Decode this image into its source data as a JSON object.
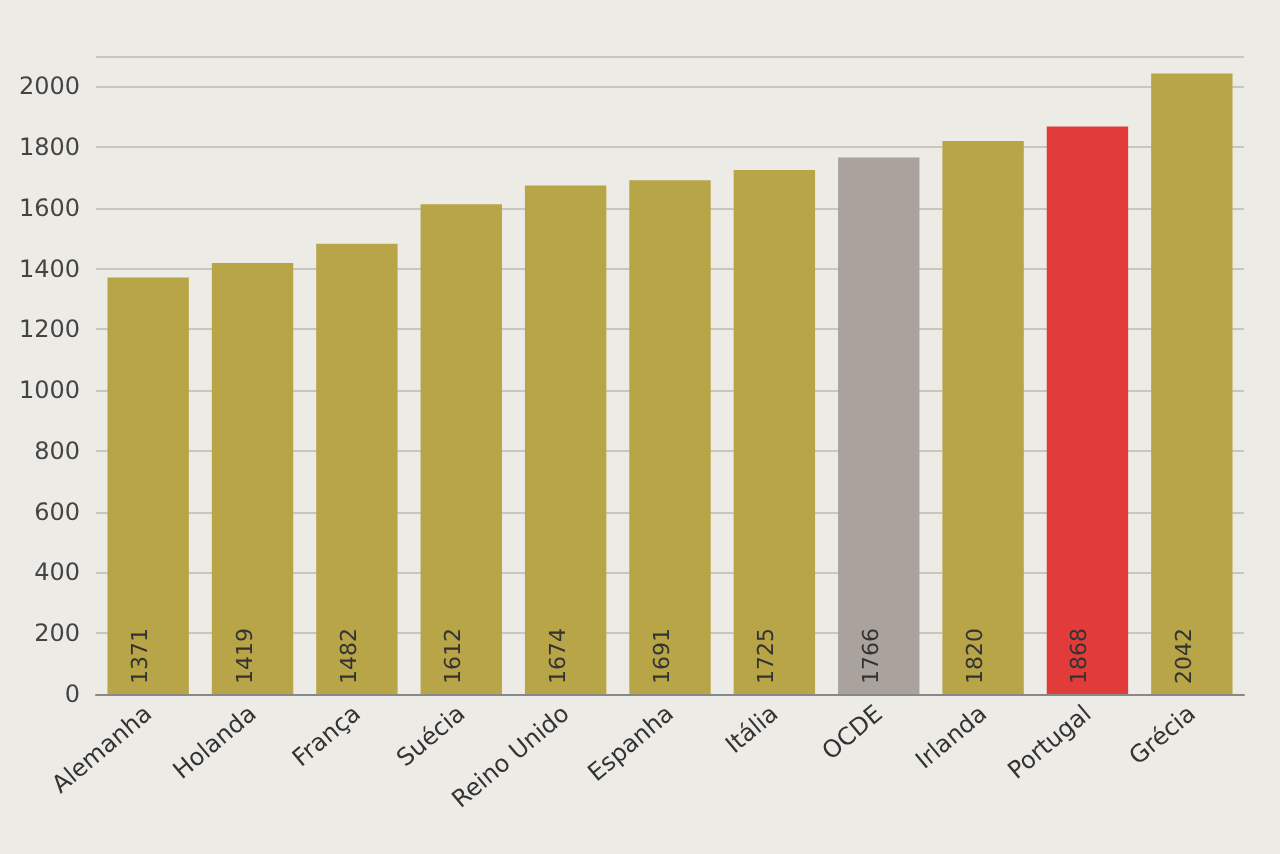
{
  "chart_data": {
    "type": "bar",
    "categories": [
      "Alemanha",
      "Holanda",
      "França",
      "Suécia",
      "Reino Unido",
      "Espanha",
      "Itália",
      "OCDE",
      "Irlanda",
      "Portugal",
      "Grécia"
    ],
    "values": [
      1371,
      1419,
      1482,
      1612,
      1674,
      1691,
      1725,
      1766,
      1820,
      1868,
      2042
    ],
    "colors": [
      "#b8a548",
      "#b8a548",
      "#b8a548",
      "#b8a548",
      "#b8a548",
      "#b8a548",
      "#b8a548",
      "#aaa29c",
      "#b8a548",
      "#e23c3a",
      "#b8a548"
    ],
    "ylim": [
      0,
      2100
    ],
    "yticks": [
      0,
      200,
      400,
      600,
      800,
      1000,
      1200,
      1400,
      1600,
      1800,
      2000
    ],
    "grid": "y",
    "data_labels": true
  }
}
